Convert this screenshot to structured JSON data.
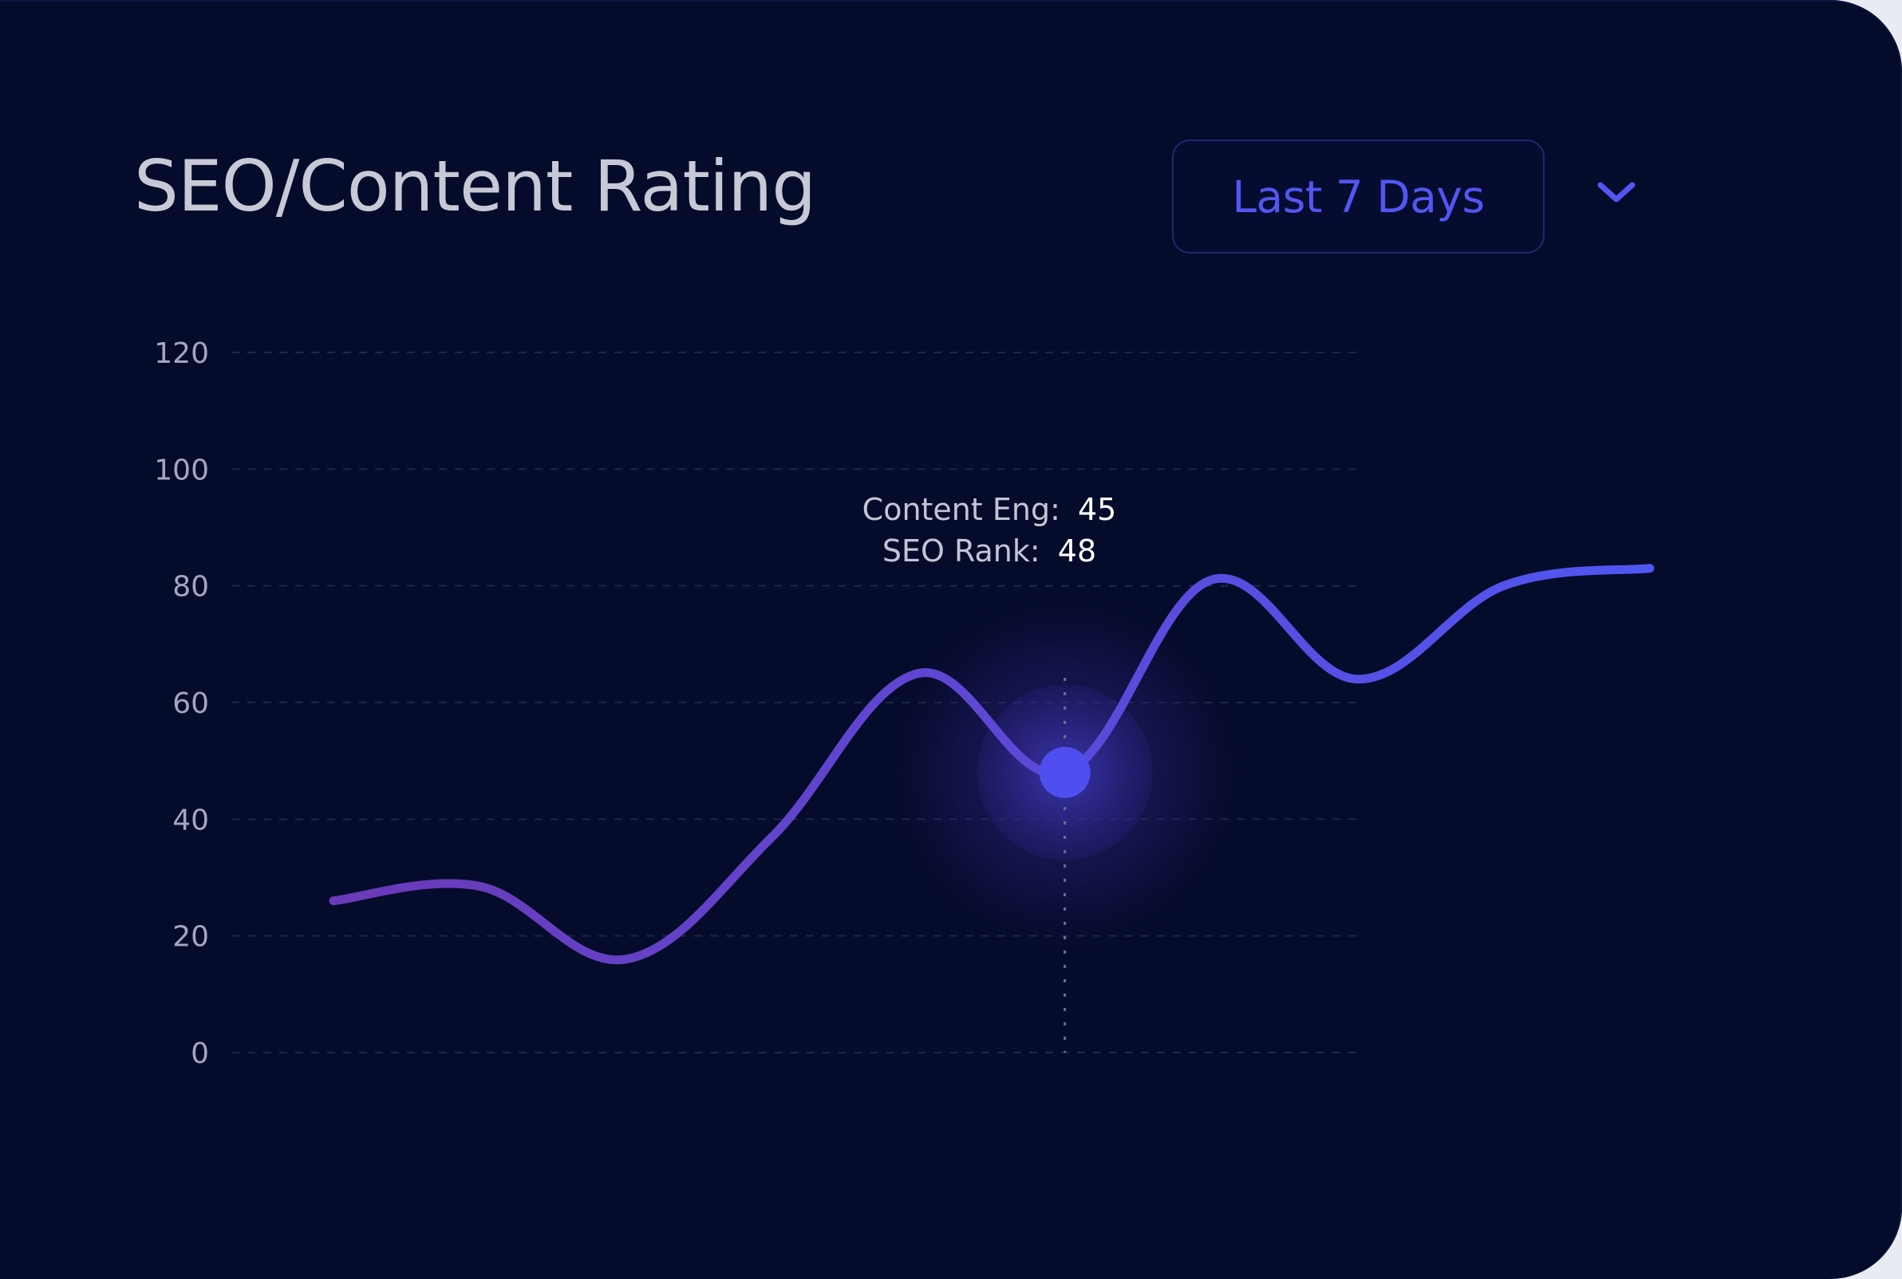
{
  "card": {
    "title": "SEO/Content Rating",
    "range_select": {
      "label": "Last 7 Days",
      "icon": "chevron-down-icon"
    }
  },
  "colors": {
    "background": "#050b2a",
    "line_start": "#6a3ab8",
    "line_end": "#5056f2",
    "accent": "#5356f0",
    "grid": "#1f2648"
  },
  "chart_data": {
    "type": "line",
    "ylim": [
      0,
      120
    ],
    "yticks": [
      "0",
      "20",
      "40",
      "60",
      "80",
      "100",
      "120"
    ],
    "grid": true,
    "x": [
      0,
      1,
      2,
      3,
      4,
      5,
      6,
      7,
      8,
      9
    ],
    "values": [
      26,
      28.5,
      16,
      37,
      65,
      48,
      81,
      64,
      80,
      83
    ],
    "highlight": {
      "index": 5,
      "content_eng_label": "Content Eng:",
      "content_eng_value": "45",
      "seo_rank_label": "SEO Rank:",
      "seo_rank_value": "48"
    }
  }
}
